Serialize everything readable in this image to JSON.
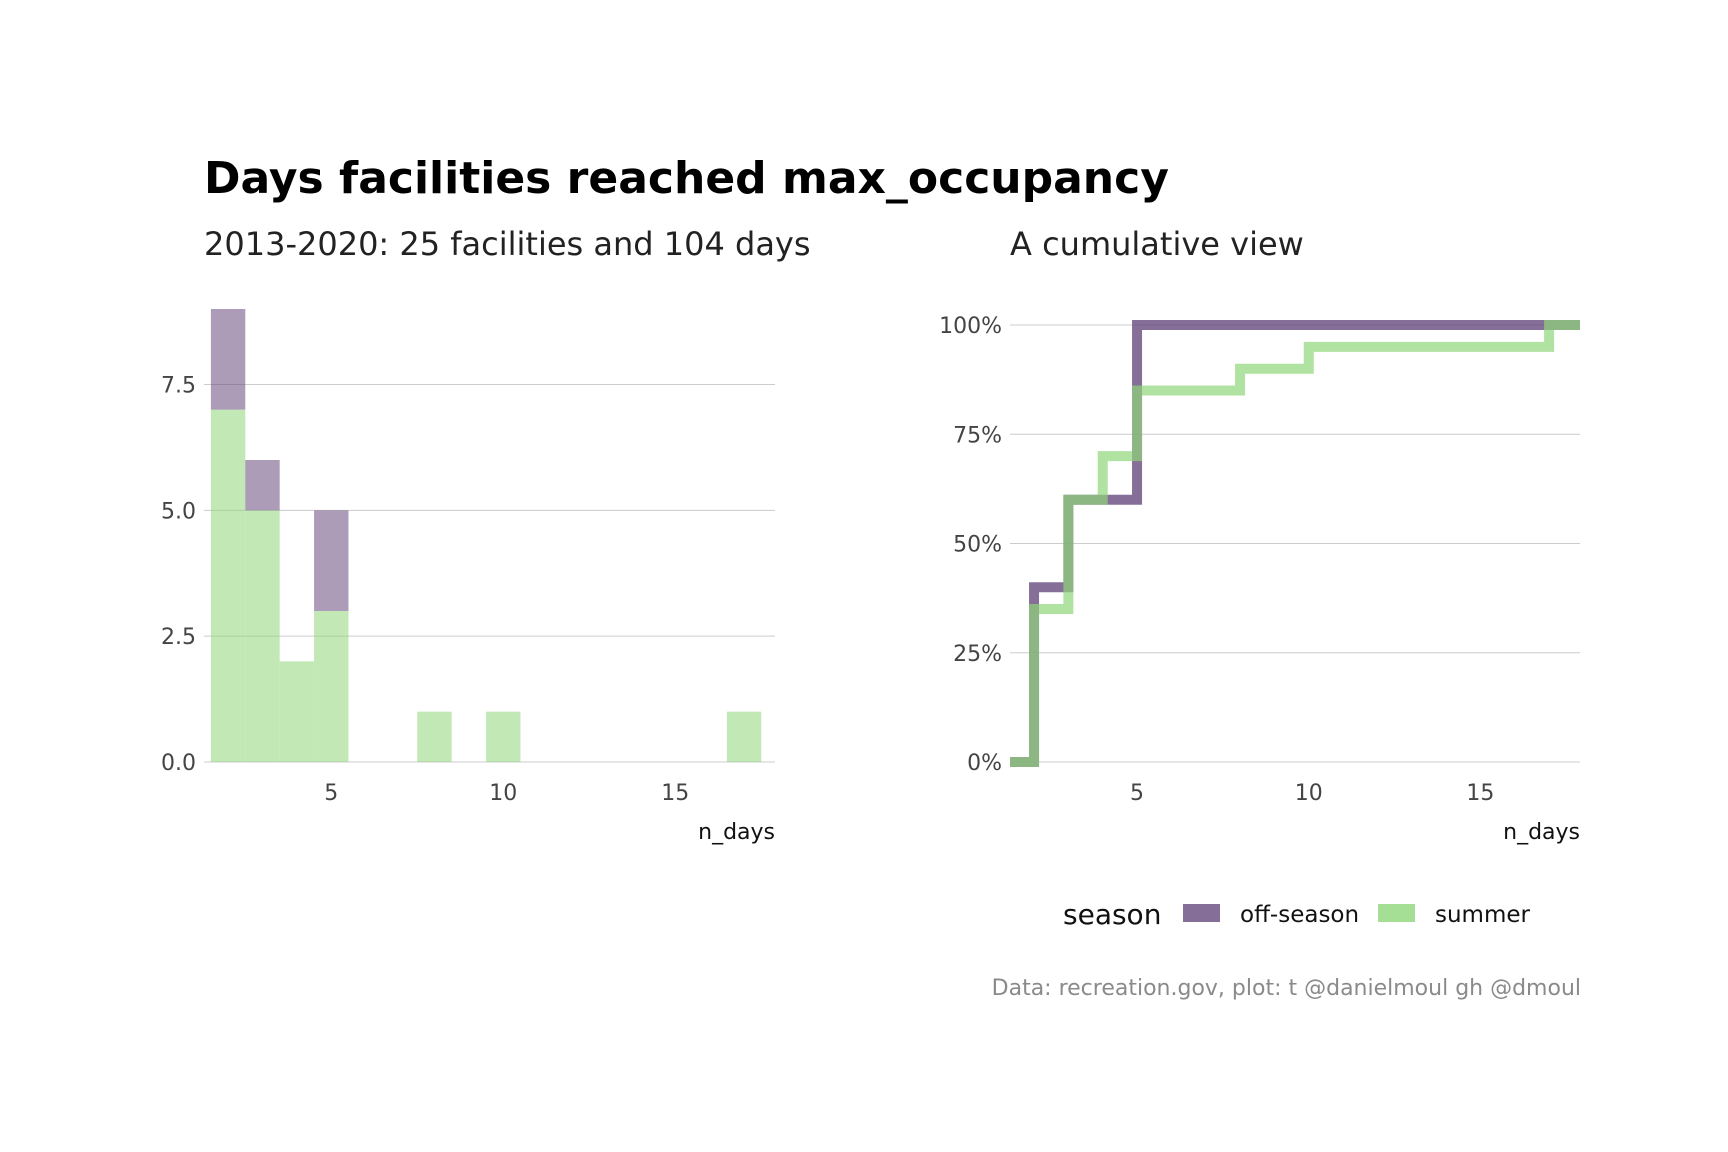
{
  "title": "Days facilities reached max_occupancy",
  "caption": "Data: recreation.gov, plot: t @danielmoul gh @dmoul",
  "colors": {
    "off_season": "#674a7d",
    "summer": "#8fd67a"
  },
  "chart_data": [
    {
      "type": "bar",
      "stacked": true,
      "subtitle": "2013-2020: 25 facilities and 104 days",
      "xlabel": "n_days",
      "ylabel": "",
      "xlim": [
        1.3,
        17.9
      ],
      "ylim": [
        0,
        9
      ],
      "xticks": [
        5,
        10,
        15
      ],
      "yticks": [
        0,
        2.5,
        5,
        7.5
      ],
      "ytick_labels": [
        "0.0",
        "2.5",
        "5.0",
        "7.5"
      ],
      "bin_width": 1,
      "bins": [
        2,
        3,
        4,
        5,
        8,
        10,
        17
      ],
      "series": [
        {
          "name": "summer",
          "values": [
            7,
            5,
            2,
            3,
            1,
            1,
            1
          ]
        },
        {
          "name": "off-season",
          "values": [
            2,
            1,
            0,
            2,
            0,
            0,
            0
          ]
        }
      ],
      "grid": true
    },
    {
      "type": "line",
      "step": true,
      "subtitle": "A cumulative view",
      "xlabel": "n_days",
      "ylabel": "",
      "xlim": [
        1.3,
        17.9
      ],
      "ylim": [
        0,
        1
      ],
      "xticks": [
        5,
        10,
        15
      ],
      "yticks": [
        0,
        0.25,
        0.5,
        0.75,
        1
      ],
      "ytick_labels": [
        "0%",
        "25%",
        "50%",
        "75%",
        "100%"
      ],
      "series": [
        {
          "name": "off-season",
          "x": [
            1.3,
            2,
            3,
            5,
            17.9
          ],
          "y": [
            0,
            0.4,
            0.6,
            1.0,
            1.0
          ]
        },
        {
          "name": "summer",
          "x": [
            1.3,
            2,
            3,
            4,
            5,
            8,
            10,
            17,
            17.9
          ],
          "y": [
            0,
            0.35,
            0.6,
            0.7,
            0.85,
            0.9,
            0.95,
            1.0,
            1.0
          ]
        }
      ],
      "grid": true
    }
  ],
  "legend": {
    "title": "season",
    "position": "bottom",
    "items": [
      {
        "label": "off-season",
        "key": "off_season"
      },
      {
        "label": "summer",
        "key": "summer"
      }
    ]
  }
}
